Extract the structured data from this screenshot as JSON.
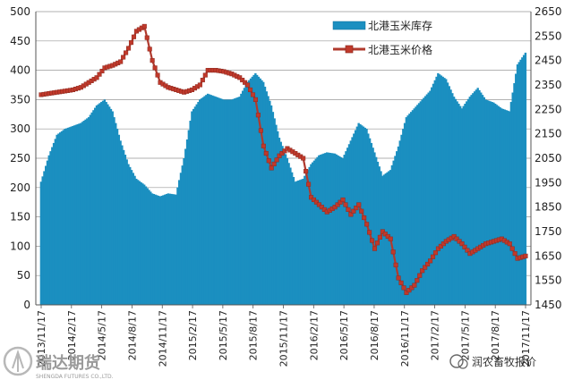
{
  "colors": {
    "bar": "#1b8fc0",
    "bar_edge": "#0f6f99",
    "line": "#b03a2e",
    "marker": "#c0392b",
    "grid": "#999999"
  },
  "chart_data": {
    "type": "bar+line",
    "title": "",
    "xlabel": "",
    "ylabel_left": "",
    "ylabel_right": "",
    "ylim_left": [
      0,
      500
    ],
    "ylim_right": [
      1450,
      2650
    ],
    "yticks_left": [
      "0",
      "50",
      "100",
      "150",
      "200",
      "250",
      "300",
      "350",
      "400",
      "450",
      "500"
    ],
    "yticks_right": [
      "1450",
      "1550",
      "1650",
      "1750",
      "1850",
      "1950",
      "2050",
      "2150",
      "2250",
      "2350",
      "2450",
      "2550",
      "2650"
    ],
    "x_tick_labels": [
      "2013/11/17",
      "2014/2/17",
      "2014/5/17",
      "2014/8/17",
      "2014/11/17",
      "2015/2/17",
      "2015/5/17",
      "2015/8/17",
      "2015/11/17",
      "2016/2/17",
      "2016/5/17",
      "2016/8/17",
      "2016/11/17",
      "2017/2/17",
      "2017/5/17",
      "2017/8/17",
      "2017/11/17"
    ],
    "grid": true,
    "legend_position": "top-right",
    "series": [
      {
        "name": "北港玉米库存",
        "type": "bar",
        "axis": "left",
        "points": [
          [
            0,
            210
          ],
          [
            1,
            255
          ],
          [
            2,
            290
          ],
          [
            3,
            300
          ],
          [
            4,
            305
          ],
          [
            5,
            310
          ],
          [
            6,
            320
          ],
          [
            7,
            340
          ],
          [
            8,
            350
          ],
          [
            9,
            330
          ],
          [
            10,
            280
          ],
          [
            11,
            240
          ],
          [
            12,
            215
          ],
          [
            13,
            205
          ],
          [
            14,
            190
          ],
          [
            15,
            185
          ],
          [
            16,
            190
          ],
          [
            17,
            188
          ],
          [
            18,
            250
          ],
          [
            19,
            330
          ],
          [
            20,
            350
          ],
          [
            21,
            360
          ],
          [
            22,
            355
          ],
          [
            23,
            350
          ],
          [
            24,
            350
          ],
          [
            25,
            355
          ],
          [
            26,
            380
          ],
          [
            27,
            395
          ],
          [
            28,
            380
          ],
          [
            29,
            340
          ],
          [
            30,
            285
          ],
          [
            31,
            250
          ],
          [
            32,
            210
          ],
          [
            33,
            215
          ],
          [
            34,
            240
          ],
          [
            35,
            255
          ],
          [
            36,
            260
          ],
          [
            37,
            258
          ],
          [
            38,
            250
          ],
          [
            39,
            280
          ],
          [
            40,
            310
          ],
          [
            41,
            300
          ],
          [
            42,
            260
          ],
          [
            43,
            220
          ],
          [
            44,
            230
          ],
          [
            45,
            270
          ],
          [
            46,
            320
          ],
          [
            47,
            335
          ],
          [
            48,
            350
          ],
          [
            49,
            365
          ],
          [
            50,
            395
          ],
          [
            51,
            385
          ],
          [
            52,
            355
          ],
          [
            53,
            335
          ],
          [
            54,
            355
          ],
          [
            55,
            370
          ],
          [
            56,
            350
          ],
          [
            57,
            345
          ],
          [
            58,
            335
          ],
          [
            59,
            330
          ],
          [
            60,
            410
          ],
          [
            61,
            430
          ]
        ]
      },
      {
        "name": "北港玉米价格",
        "type": "line",
        "axis": "right",
        "points": [
          [
            0,
            2310
          ],
          [
            1,
            2315
          ],
          [
            2,
            2320
          ],
          [
            3,
            2325
          ],
          [
            4,
            2330
          ],
          [
            5,
            2340
          ],
          [
            6,
            2360
          ],
          [
            7,
            2380
          ],
          [
            8,
            2420
          ],
          [
            9,
            2430
          ],
          [
            10,
            2445
          ],
          [
            11,
            2500
          ],
          [
            12,
            2570
          ],
          [
            13,
            2590
          ],
          [
            14,
            2450
          ],
          [
            15,
            2360
          ],
          [
            16,
            2340
          ],
          [
            17,
            2330
          ],
          [
            18,
            2320
          ],
          [
            19,
            2330
          ],
          [
            20,
            2350
          ],
          [
            21,
            2410
          ],
          [
            22,
            2410
          ],
          [
            23,
            2405
          ],
          [
            24,
            2395
          ],
          [
            25,
            2380
          ],
          [
            26,
            2350
          ],
          [
            27,
            2290
          ],
          [
            28,
            2100
          ],
          [
            29,
            2010
          ],
          [
            30,
            2060
          ],
          [
            31,
            2090
          ],
          [
            32,
            2070
          ],
          [
            33,
            2050
          ],
          [
            34,
            1890
          ],
          [
            35,
            1860
          ],
          [
            36,
            1830
          ],
          [
            37,
            1850
          ],
          [
            38,
            1880
          ],
          [
            39,
            1820
          ],
          [
            40,
            1860
          ],
          [
            41,
            1780
          ],
          [
            42,
            1680
          ],
          [
            43,
            1750
          ],
          [
            44,
            1720
          ],
          [
            45,
            1560
          ],
          [
            46,
            1500
          ],
          [
            47,
            1530
          ],
          [
            48,
            1590
          ],
          [
            49,
            1630
          ],
          [
            50,
            1680
          ],
          [
            51,
            1710
          ],
          [
            52,
            1730
          ],
          [
            53,
            1700
          ],
          [
            54,
            1660
          ],
          [
            55,
            1680
          ],
          [
            56,
            1700
          ],
          [
            57,
            1710
          ],
          [
            58,
            1720
          ],
          [
            59,
            1700
          ],
          [
            60,
            1640
          ],
          [
            61,
            1650
          ]
        ]
      }
    ]
  },
  "watermark": {
    "company_text": "瑞达期货",
    "company_sub": "SHENGDA FUTURES CO.,LTD.",
    "wechat_text": "润农畜牧报价"
  }
}
